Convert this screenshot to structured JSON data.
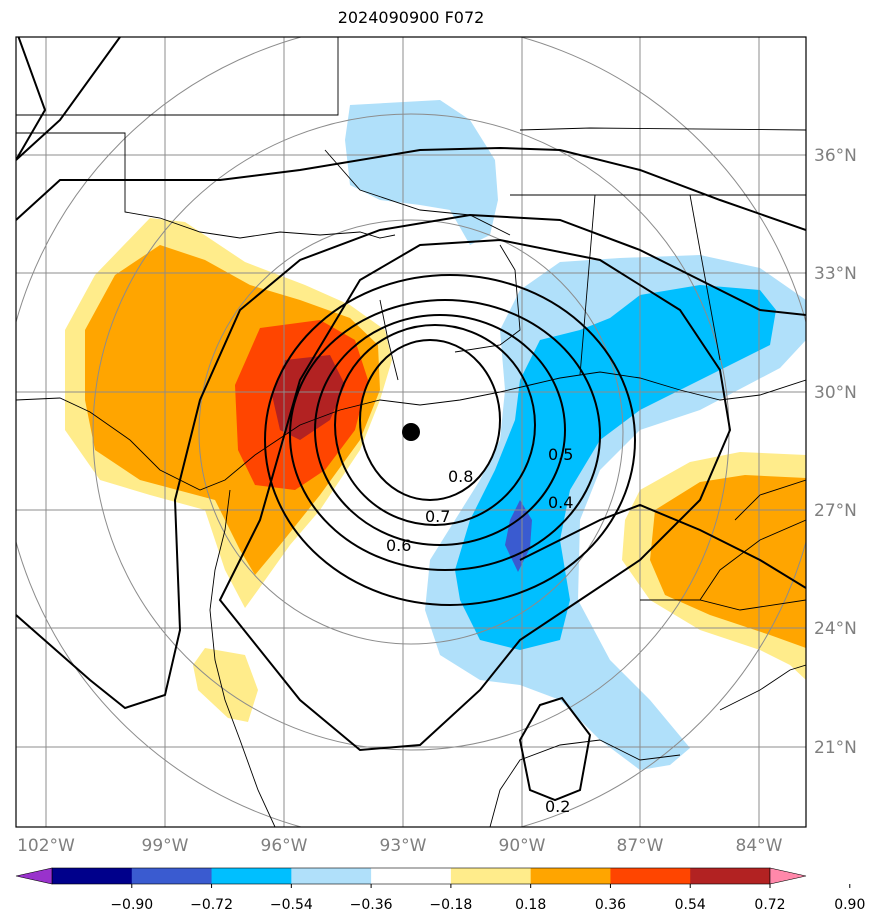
{
  "title": "2024090900 F072",
  "map": {
    "lon_labels": [
      "102°W",
      "99°W",
      "96°W",
      "93°W",
      "90°W",
      "87°W",
      "84°W"
    ],
    "lat_labels": [
      "36°N",
      "33°N",
      "30°N",
      "27°N",
      "24°N",
      "21°N"
    ],
    "contour_labels": [
      "0.8",
      "0.7",
      "0.6",
      "0.5",
      "0.4",
      "0.2"
    ],
    "center_marker": "storm-center"
  },
  "colorbar": {
    "ticks": [
      "−0.90",
      "−0.72",
      "−0.54",
      "−0.36",
      "−0.18",
      "0.18",
      "0.36",
      "0.54",
      "0.72",
      "0.90"
    ],
    "colors": [
      "#9932cc",
      "#00008b",
      "#3a5bd0",
      "#00bfff",
      "#b0e0fa",
      "#ffffff",
      "#ffec8b",
      "#ffa500",
      "#ff4500",
      "#b22222",
      "#ff88aa"
    ]
  },
  "colors": {
    "gridline": "#8c8c8c",
    "coast": "#000000",
    "contour": "#000000"
  }
}
